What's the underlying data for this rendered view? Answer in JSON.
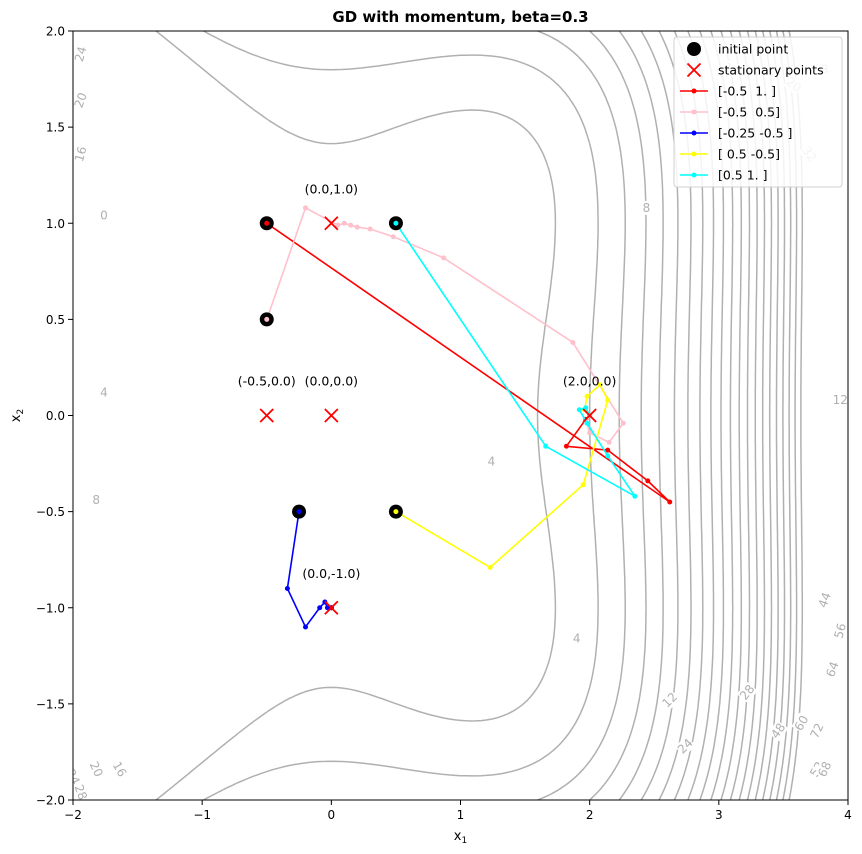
{
  "chart_data": {
    "type": "line",
    "title": "GD with momentum, beta=0.3",
    "xlabel": "x",
    "xlabel_sub": "1",
    "ylabel": "x",
    "ylabel_sub": "2",
    "xlim": [
      -2,
      4
    ],
    "ylim": [
      -2,
      2
    ],
    "x_ticks": [
      "−2",
      "−1",
      "0",
      "1",
      "2",
      "3",
      "4"
    ],
    "x_tick_values": [
      -2,
      -1,
      0,
      1,
      2,
      3,
      4
    ],
    "y_ticks": [
      "−2.0",
      "−1.5",
      "−1.0",
      "−0.5",
      "0.0",
      "0.5",
      "1.0",
      "1.5",
      "2.0"
    ],
    "y_tick_values": [
      -2,
      -1.5,
      -1,
      -0.5,
      0,
      0.5,
      1,
      1.5,
      2
    ],
    "grid": false,
    "legend_position": "top-right",
    "contour_color": "#b0b0b0",
    "contour_levels": [
      0,
      4,
      8,
      12,
      16,
      20,
      24,
      28,
      32,
      36,
      40,
      44,
      48,
      52,
      56,
      60,
      64,
      68,
      72,
      76,
      80
    ],
    "contour_label_texts": [
      "0",
      "4",
      "4",
      "4",
      "8",
      "8",
      "8",
      "12",
      "12",
      "16",
      "16",
      "16",
      "20",
      "20",
      "20",
      "24",
      "24",
      "24",
      "28",
      "28",
      "32",
      "44",
      "48",
      "52",
      "56",
      "60",
      "64",
      "68",
      "72"
    ],
    "initial_points": {
      "label": "initial point",
      "color": "#000000",
      "points": [
        [
          -0.5,
          1.0
        ],
        [
          -0.5,
          0.5
        ],
        [
          -0.25,
          -0.5
        ],
        [
          0.5,
          -0.5
        ],
        [
          0.5,
          1.0
        ]
      ]
    },
    "stationary_points": {
      "label": "stationary points",
      "color": "#ff0000",
      "points": [
        [
          0.0,
          1.0
        ],
        [
          -0.5,
          0.0
        ],
        [
          0.0,
          0.0
        ],
        [
          2.0,
          0.0
        ],
        [
          0.0,
          -1.0
        ]
      ],
      "annotations": [
        "(0.0,1.0)",
        "(-0.5,0.0)",
        "(0.0,0.0)",
        "(2.0,0.0)",
        "(0.0,-1.0)"
      ]
    },
    "series": [
      {
        "name": "[-0.5  1. ]",
        "color": "#ff0000",
        "x": [
          -0.5,
          2.62,
          2.45,
          2.14,
          1.82,
          1.97,
          2.0
        ],
        "y": [
          1.0,
          -0.45,
          -0.34,
          -0.18,
          -0.16,
          -0.02,
          0.0
        ]
      },
      {
        "name": "[-0.5  0.5]",
        "color": "#ffc0cb",
        "x": [
          -0.5,
          -0.2,
          0.05,
          0.1,
          0.15,
          0.2,
          0.3,
          0.48,
          0.87,
          1.87,
          2.26,
          2.15,
          2.0,
          1.97,
          2.0
        ],
        "y": [
          0.5,
          1.08,
          0.99,
          1.0,
          0.99,
          0.98,
          0.97,
          0.93,
          0.82,
          0.38,
          -0.04,
          -0.14,
          -0.09,
          -0.03,
          0.0
        ]
      },
      {
        "name": "[-0.25 -0.5 ]",
        "color": "#0000ff",
        "x": [
          -0.25,
          -0.34,
          -0.2,
          -0.09,
          -0.05,
          -0.03,
          0.0,
          0.0
        ],
        "y": [
          -0.5,
          -0.9,
          -1.1,
          -1.0,
          -0.97,
          -1.0,
          -1.0,
          -1.0
        ]
      },
      {
        "name": "[ 0.5 -0.5]",
        "color": "#ffff00",
        "x": [
          0.5,
          1.23,
          1.95,
          2.14,
          2.08,
          1.98,
          1.96,
          2.0
        ],
        "y": [
          -0.5,
          -0.79,
          -0.36,
          0.08,
          0.16,
          0.1,
          0.03,
          0.0
        ]
      },
      {
        "name": "[0.5 1. ]",
        "color": "#00ffff",
        "x": [
          0.5,
          1.66,
          2.35,
          2.14,
          1.98,
          1.92,
          1.97,
          2.0
        ],
        "y": [
          1.0,
          -0.16,
          -0.42,
          -0.21,
          -0.04,
          0.03,
          0.04,
          0.0
        ]
      }
    ]
  }
}
